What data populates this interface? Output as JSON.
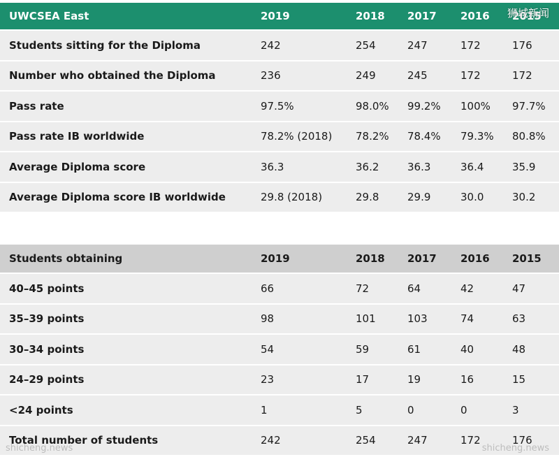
{
  "table1": {
    "header": [
      "UWCSEA East",
      "2019",
      "2018",
      "2017",
      "2016",
      "2015"
    ],
    "rows": [
      [
        "Students sitting for the Diploma",
        "242",
        "254",
        "247",
        "172",
        "176"
      ],
      [
        "Number who obtained the Diploma",
        "236",
        "249",
        "245",
        "172",
        "172"
      ],
      [
        "Pass rate",
        "97.5%",
        "98.0%",
        "99.2%",
        "100%",
        "97.7%"
      ],
      [
        "Pass rate IB worldwide",
        "78.2% (2018)",
        "78.2%",
        "78.4%",
        "79.3%",
        "80.8%"
      ],
      [
        "Average Diploma score",
        "36.3",
        "36.2",
        "36.3",
        "36.4",
        "35.9"
      ],
      [
        "Average Diploma score IB worldwide",
        "29.8 (2018)",
        "29.8",
        "29.9",
        "30.0",
        "30.2"
      ]
    ]
  },
  "table2": {
    "header": [
      "Students obtaining",
      "2019",
      "2018",
      "2017",
      "2016",
      "2015"
    ],
    "rows": [
      [
        "40–45 points",
        "66",
        "72",
        "64",
        "42",
        "47"
      ],
      [
        "35–39 points",
        "98",
        "101",
        "103",
        "74",
        "63"
      ],
      [
        "30–34 points",
        "54",
        "59",
        "61",
        "40",
        "48"
      ],
      [
        "24–29 points",
        "23",
        "17",
        "19",
        "16",
        "15"
      ],
      [
        "<24 points",
        "1",
        "5",
        "0",
        "0",
        "3"
      ],
      [
        "Total number of students",
        "242",
        "254",
        "247",
        "172",
        "176"
      ]
    ]
  },
  "watermarks": {
    "top_right": "狮城新闻",
    "bottom_left": "shicheng.news",
    "bottom_right": "shicheng.news"
  }
}
